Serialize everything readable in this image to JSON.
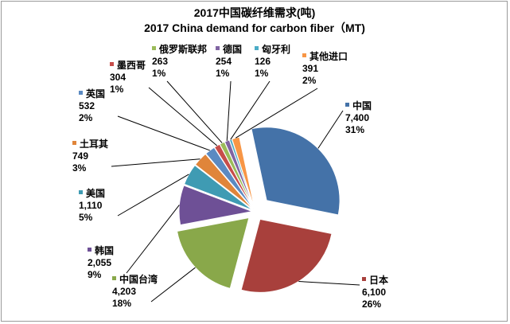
{
  "chart_data": {
    "type": "pie",
    "title": "2017中国碳纤维需求(吨)",
    "subtitle": "2017 China demand for carbon fiber（MT)",
    "legend": "none",
    "slices": [
      {
        "name": "中国",
        "value": 7400,
        "value_label": "7,400",
        "percent": "31%",
        "color": "#4472a8"
      },
      {
        "name": "日本",
        "value": 6100,
        "value_label": "6,100",
        "percent": "26%",
        "color": "#a8403c"
      },
      {
        "name": "中国台湾",
        "value": 4203,
        "value_label": "4,203",
        "percent": "18%",
        "color": "#89a84a"
      },
      {
        "name": "韩国",
        "value": 2055,
        "value_label": "2,055",
        "percent": "9%",
        "color": "#6e5096"
      },
      {
        "name": "美国",
        "value": 1110,
        "value_label": "1,110",
        "percent": "5%",
        "color": "#3f9bb3"
      },
      {
        "name": "土耳其",
        "value": 749,
        "value_label": "749",
        "percent": "3%",
        "color": "#e0853a"
      },
      {
        "name": "英国",
        "value": 532,
        "value_label": "532",
        "percent": "2%",
        "color": "#5b8ac2"
      },
      {
        "name": "墨西哥",
        "value": 304,
        "value_label": "304",
        "percent": "1%",
        "color": "#c74d4a"
      },
      {
        "name": "俄罗斯联邦",
        "value": 263,
        "value_label": "263",
        "percent": "1%",
        "color": "#9bbb59"
      },
      {
        "name": "德国",
        "value": 254,
        "value_label": "254",
        "percent": "1%",
        "color": "#8064a2"
      },
      {
        "name": "匈牙利",
        "value": 126,
        "value_label": "126",
        "percent": "1%",
        "color": "#4bacc6"
      },
      {
        "name": "其他进口",
        "value": 391,
        "value_label": "391",
        "percent": "2%",
        "color": "#f79646"
      }
    ]
  }
}
